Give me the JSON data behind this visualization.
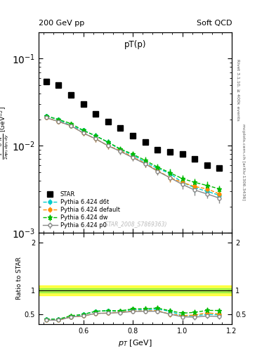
{
  "title_left": "200 GeV pp",
  "title_right": "Soft QCD",
  "plot_title": "pT(p)",
  "ylabel_main": "$\\frac{1}{2\\pi p_T} \\frac{d^2N}{dp_T\\, dy}$ [GeV$^{-2}$]",
  "ylabel_ratio": "Ratio to STAR",
  "xlabel": "$p_T$ [GeV]",
  "watermark": "(STAR_2008_S7869363)",
  "rivet_label": "Rivet 3.1.10, ≥ 400k events",
  "mcplots_label": "mcplots.cern.ch [arXiv:1306.3436]",
  "star_x": [
    0.45,
    0.5,
    0.55,
    0.6,
    0.65,
    0.7,
    0.75,
    0.8,
    0.85,
    0.9,
    0.95,
    1.0,
    1.05,
    1.1,
    1.15
  ],
  "star_y": [
    0.055,
    0.05,
    0.038,
    0.03,
    0.023,
    0.019,
    0.016,
    0.013,
    0.011,
    0.009,
    0.0085,
    0.008,
    0.007,
    0.006,
    0.0055
  ],
  "d6t_x": [
    0.45,
    0.5,
    0.55,
    0.6,
    0.65,
    0.7,
    0.75,
    0.8,
    0.85,
    0.9,
    0.95,
    1.0,
    1.05,
    1.1,
    1.15
  ],
  "d6t_y": [
    0.022,
    0.02,
    0.017,
    0.015,
    0.013,
    0.011,
    0.009,
    0.0078,
    0.0065,
    0.0055,
    0.0048,
    0.0038,
    0.0033,
    0.003,
    0.0027
  ],
  "d6t_yerr": [
    0.001,
    0.001,
    0.001,
    0.001,
    0.001,
    0.0008,
    0.0007,
    0.0006,
    0.0006,
    0.0005,
    0.0005,
    0.0004,
    0.0004,
    0.0003,
    0.0003
  ],
  "default_x": [
    0.45,
    0.5,
    0.55,
    0.6,
    0.65,
    0.7,
    0.75,
    0.8,
    0.85,
    0.9,
    0.95,
    1.0,
    1.05,
    1.1,
    1.15
  ],
  "default_y": [
    0.021,
    0.019,
    0.017,
    0.014,
    0.012,
    0.01,
    0.0088,
    0.0074,
    0.0063,
    0.0052,
    0.0043,
    0.0038,
    0.0034,
    0.0032,
    0.0028
  ],
  "default_yerr": [
    0.001,
    0.001,
    0.001,
    0.001,
    0.0009,
    0.0008,
    0.0007,
    0.0006,
    0.0006,
    0.0005,
    0.0005,
    0.0004,
    0.0004,
    0.0004,
    0.0004
  ],
  "dw_x": [
    0.45,
    0.5,
    0.55,
    0.6,
    0.65,
    0.7,
    0.75,
    0.8,
    0.85,
    0.9,
    0.95,
    1.0,
    1.05,
    1.1,
    1.15
  ],
  "dw_y": [
    0.022,
    0.02,
    0.018,
    0.015,
    0.013,
    0.011,
    0.0092,
    0.008,
    0.0068,
    0.0057,
    0.0049,
    0.0042,
    0.0038,
    0.0035,
    0.0032
  ],
  "dw_yerr": [
    0.001,
    0.001,
    0.001,
    0.001,
    0.001,
    0.0009,
    0.0007,
    0.0006,
    0.0006,
    0.0005,
    0.0005,
    0.0004,
    0.0004,
    0.0004,
    0.0003
  ],
  "p0_x": [
    0.45,
    0.5,
    0.55,
    0.6,
    0.65,
    0.7,
    0.75,
    0.8,
    0.85,
    0.9,
    0.95,
    1.0,
    1.05,
    1.1,
    1.15
  ],
  "p0_y": [
    0.021,
    0.019,
    0.017,
    0.014,
    0.012,
    0.01,
    0.0086,
    0.0073,
    0.0062,
    0.0051,
    0.0043,
    0.0036,
    0.0031,
    0.0028,
    0.0025
  ],
  "p0_yerr": [
    0.001,
    0.001,
    0.001,
    0.001,
    0.0009,
    0.0008,
    0.0007,
    0.0006,
    0.0005,
    0.0005,
    0.0004,
    0.0004,
    0.0004,
    0.0003,
    0.0003
  ],
  "color_star": "#000000",
  "color_d6t": "#00CCCC",
  "color_default": "#FF8C00",
  "color_dw": "#00BB00",
  "color_p0": "#888888",
  "band_green_lo": 0.95,
  "band_green_hi": 1.05,
  "band_yellow_lo": 0.9,
  "band_yellow_hi": 1.1,
  "xlim": [
    0.42,
    1.2
  ],
  "ylim_main": [
    0.001,
    0.2
  ],
  "ylim_ratio": [
    0.3,
    2.2
  ]
}
